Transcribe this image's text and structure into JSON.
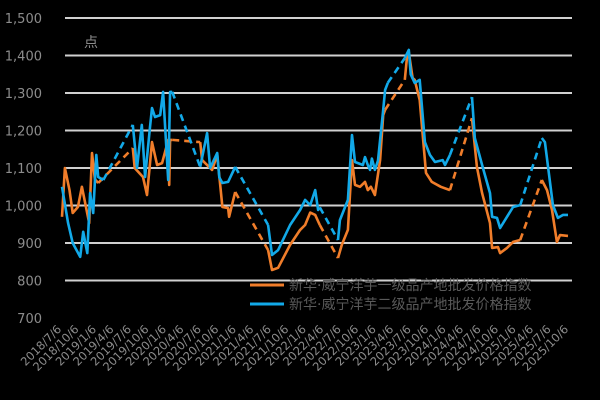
{
  "chart_data": {
    "type": "line",
    "title": "",
    "unit_label": "点",
    "xlabel": "",
    "ylabel": "",
    "ylim": [
      700,
      1500
    ],
    "yticks": [
      700,
      800,
      900,
      1000,
      1100,
      1200,
      1300,
      1400,
      1500
    ],
    "ytick_labels": [
      "700",
      "800",
      "900",
      "1,000",
      "1,100",
      "1,200",
      "1,300",
      "1,400",
      "1,500"
    ],
    "xlim": [
      "2018-07-06",
      "2025-10-06"
    ],
    "xtick_labels": [
      "2018/7/6",
      "2018/10/6",
      "2019/1/6",
      "2019/4/6",
      "2019/7/6",
      "2019/10/6",
      "2020/1/6",
      "2020/4/6",
      "2020/7/6",
      "2020/10/6",
      "2021/1/6",
      "2021/4/6",
      "2021/7/6",
      "2021/10/6",
      "2022/1/6",
      "2022/4/6",
      "2022/7/6",
      "2022/10/6",
      "2023/1/6",
      "2023/4/6",
      "2023/7/6",
      "2023/10/6",
      "2024/1/6",
      "2024/4/6",
      "2024/7/6",
      "2024/10/6",
      "2025/1/6",
      "2025/4/6",
      "2025/7/6",
      "2025/10/6"
    ],
    "grid": true,
    "legend_placement": "bottom-right",
    "gaps_drawn_as": "dashed",
    "series": [
      {
        "name": "新华·威宁洋芋一级品产地批发价格指数",
        "color": "#f07d2a",
        "segments": [
          [
            [
              "2018-07-06",
              970
            ],
            [
              "2018-07-21",
              1100
            ],
            [
              "2018-08-14",
              1041
            ],
            [
              "2018-08-31",
              980
            ],
            [
              "2018-09-27",
              996
            ],
            [
              "2018-10-18",
              1050
            ],
            [
              "2018-11-25",
              953
            ],
            [
              "2018-12-10",
              1140
            ],
            [
              "2018-12-25",
              1070
            ],
            [
              "2019-01-11",
              1060
            ]
          ],
          [
            [
              "2019-07-11",
              1153
            ],
            [
              "2019-07-21",
              1100
            ],
            [
              "2019-09-02",
              1076
            ],
            [
              "2019-09-23",
              1028
            ],
            [
              "2019-10-19",
              1169
            ],
            [
              "2019-11-15",
              1108
            ],
            [
              "2019-12-11",
              1113
            ],
            [
              "2020-01-12",
              1175
            ],
            [
              "2020-01-17",
              1055
            ],
            [
              "2020-01-22",
              1175
            ],
            [
              "2020-02-02",
              1175
            ]
          ],
          [
            [
              "2020-06-27",
              1169
            ],
            [
              "2020-07-07",
              1121
            ],
            [
              "2020-08-28",
              1095
            ],
            [
              "2020-09-24",
              1135
            ],
            [
              "2020-10-21",
              996
            ],
            [
              "2020-11-20",
              993
            ],
            [
              "2020-11-25",
              970
            ],
            [
              "2020-12-27",
              1036
            ]
          ],
          [
            [
              "2021-06-17",
              881
            ],
            [
              "2021-07-07",
              828
            ],
            [
              "2021-08-08",
              834
            ],
            [
              "2021-10-10",
              895
            ],
            [
              "2021-12-01",
              935
            ],
            [
              "2021-12-27",
              948
            ],
            [
              "2022-01-23",
              981
            ],
            [
              "2022-02-18",
              975
            ],
            [
              "2022-03-14",
              948
            ]
          ],
          [
            [
              "2022-06-17",
              860
            ],
            [
              "2022-07-07",
              895
            ],
            [
              "2022-08-08",
              935
            ],
            [
              "2022-08-29",
              1121
            ],
            [
              "2022-09-14",
              1055
            ],
            [
              "2022-10-10",
              1050
            ],
            [
              "2022-11-05",
              1063
            ],
            [
              "2022-11-20",
              1041
            ],
            [
              "2022-12-06",
              1050
            ],
            [
              "2022-12-27",
              1028
            ],
            [
              "2023-01-23",
              1121
            ],
            [
              "2023-02-08",
              1241
            ],
            [
              "2023-02-18",
              1255
            ]
          ],
          [
            [
              "2023-06-01",
              1335
            ],
            [
              "2023-06-12",
              1393
            ],
            [
              "2023-06-22",
              1409
            ],
            [
              "2023-07-12",
              1340
            ],
            [
              "2023-07-23",
              1335
            ],
            [
              "2023-08-18",
              1281
            ],
            [
              "2023-09-20",
              1087
            ],
            [
              "2023-10-20",
              1063
            ],
            [
              "2023-12-06",
              1050
            ],
            [
              "2024-01-23",
              1041
            ]
          ],
          [
            [
              "2024-05-17",
              1233
            ],
            [
              "2024-06-12",
              1103
            ],
            [
              "2024-07-09",
              1033
            ],
            [
              "2024-08-19",
              953
            ],
            [
              "2024-08-30",
              887
            ],
            [
              "2024-09-30",
              889
            ],
            [
              "2024-10-11",
              873
            ],
            [
              "2024-11-16",
              887
            ],
            [
              "2024-12-18",
              903
            ],
            [
              "2025-01-24",
              908
            ]
          ],
          [
            [
              "2025-05-17",
              1068
            ],
            [
              "2025-06-13",
              1041
            ],
            [
              "2025-07-09",
              988
            ],
            [
              "2025-08-04",
              903
            ],
            [
              "2025-08-20",
              921
            ],
            [
              "2025-10-01",
              919
            ]
          ]
        ]
      },
      {
        "name": "新华·威宁洋芋二级品产地批发价格指数",
        "color": "#12a9e8",
        "segments": [
          [
            [
              "2018-07-06",
              1050
            ],
            [
              "2018-08-07",
              953
            ],
            [
              "2018-08-31",
              900
            ],
            [
              "2018-10-09",
              863
            ],
            [
              "2018-10-25",
              930
            ],
            [
              "2018-11-15",
              873
            ],
            [
              "2018-11-30",
              1033
            ],
            [
              "2018-12-16",
              980
            ],
            [
              "2019-01-01",
              1135
            ],
            [
              "2019-01-11",
              1076
            ],
            [
              "2019-02-07",
              1068
            ]
          ],
          [
            [
              "2019-07-11",
              1215
            ],
            [
              "2019-08-02",
              1100
            ],
            [
              "2019-08-27",
              1215
            ],
            [
              "2019-09-13",
              1076
            ],
            [
              "2019-10-09",
              1209
            ],
            [
              "2019-10-19",
              1260
            ],
            [
              "2019-11-04",
              1236
            ],
            [
              "2019-12-01",
              1241
            ],
            [
              "2019-12-16",
              1303
            ],
            [
              "2020-01-12",
              1068
            ],
            [
              "2020-01-22",
              1303
            ],
            [
              "2020-02-02",
              1303
            ]
          ],
          [
            [
              "2020-06-27",
              1103
            ],
            [
              "2020-08-02",
              1193
            ],
            [
              "2020-08-18",
              1100
            ],
            [
              "2020-09-24",
              1140
            ],
            [
              "2020-10-05",
              1075
            ],
            [
              "2020-10-21",
              1060
            ],
            [
              "2020-11-20",
              1063
            ],
            [
              "2020-12-27",
              1103
            ]
          ],
          [
            [
              "2021-06-17",
              948
            ],
            [
              "2021-07-07",
              868
            ],
            [
              "2021-08-08",
              881
            ],
            [
              "2021-10-10",
              948
            ],
            [
              "2021-12-01",
              988
            ],
            [
              "2021-12-27",
              1015
            ],
            [
              "2022-01-23",
              1001
            ],
            [
              "2022-02-18",
              1041
            ],
            [
              "2022-03-05",
              988
            ],
            [
              "2022-03-14",
              995
            ]
          ],
          [
            [
              "2022-06-17",
              908
            ],
            [
              "2022-06-27",
              961
            ],
            [
              "2022-08-08",
              1015
            ],
            [
              "2022-08-29",
              1188
            ],
            [
              "2022-09-14",
              1116
            ],
            [
              "2022-10-25",
              1108
            ],
            [
              "2022-11-05",
              1129
            ],
            [
              "2022-11-20",
              1108
            ],
            [
              "2022-12-01",
              1095
            ],
            [
              "2022-12-11",
              1125
            ],
            [
              "2022-12-27",
              1095
            ],
            [
              "2023-01-12",
              1120
            ],
            [
              "2023-01-23",
              1175
            ],
            [
              "2023-02-08",
              1255
            ],
            [
              "2023-02-18",
              1308
            ],
            [
              "2023-03-04",
              1327
            ]
          ],
          [
            [
              "2023-06-01",
              1393
            ],
            [
              "2023-06-22",
              1415
            ],
            [
              "2023-07-02",
              1350
            ],
            [
              "2023-07-23",
              1327
            ],
            [
              "2023-08-18",
              1335
            ],
            [
              "2023-09-14",
              1169
            ],
            [
              "2023-10-10",
              1135
            ],
            [
              "2023-11-06",
              1116
            ],
            [
              "2023-12-16",
              1121
            ],
            [
              "2023-12-28",
              1108
            ],
            [
              "2024-01-23",
              1135
            ]
          ],
          [
            [
              "2024-05-17",
              1289
            ],
            [
              "2024-06-01",
              1180
            ],
            [
              "2024-07-09",
              1108
            ],
            [
              "2024-08-19",
              1033
            ],
            [
              "2024-08-30",
              970
            ],
            [
              "2024-09-25",
              967
            ],
            [
              "2024-10-11",
              940
            ],
            [
              "2024-11-16",
              970
            ],
            [
              "2024-12-18",
              996
            ],
            [
              "2025-01-24",
              1001
            ]
          ],
          [
            [
              "2025-05-17",
              1180
            ],
            [
              "2025-06-02",
              1169
            ],
            [
              "2025-07-14",
              1001
            ],
            [
              "2025-08-09",
              967
            ],
            [
              "2025-09-05",
              975
            ],
            [
              "2025-10-01",
              975
            ]
          ]
        ]
      }
    ]
  }
}
